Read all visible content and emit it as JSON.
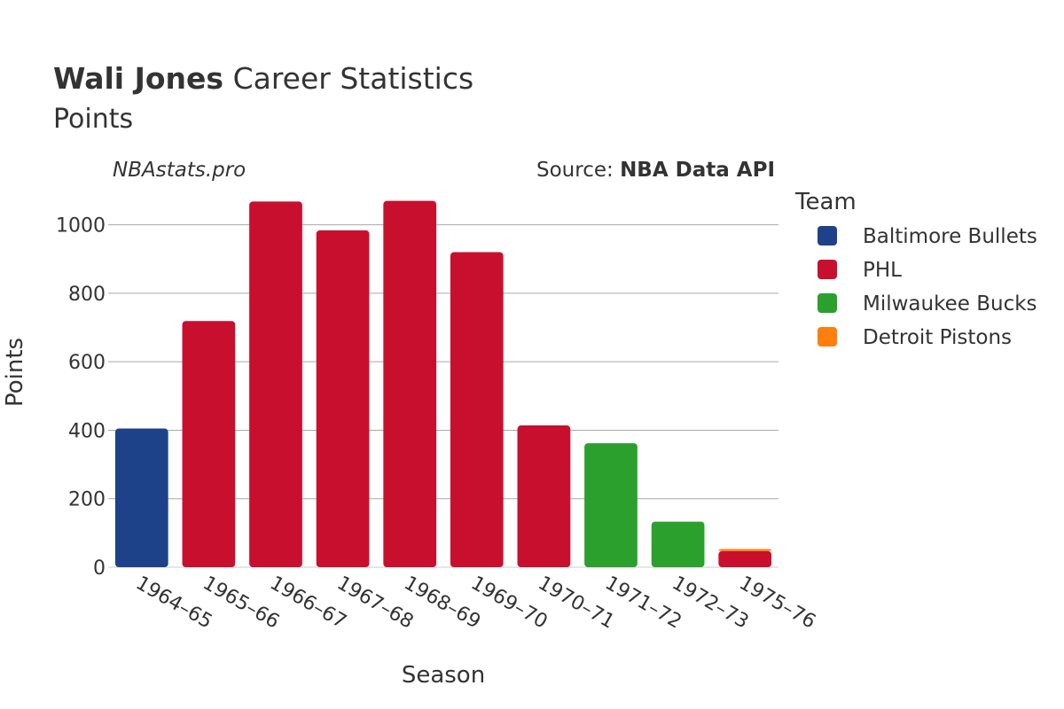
{
  "header": {
    "title_bold": "Wali Jones",
    "title_rest": " Career Statistics",
    "subtitle": "Points",
    "watermark": "NBAstats.pro",
    "source_prefix": "Source: ",
    "source_name": "NBA Data API"
  },
  "legend": {
    "title": "Team",
    "items": [
      {
        "label": "Baltimore Bullets",
        "color": "#1d428a"
      },
      {
        "label": "PHL",
        "color": "#c8102e"
      },
      {
        "label": "Milwaukee Bucks",
        "color": "#2ca02c"
      },
      {
        "label": "Detroit Pistons",
        "color": "#ff7f0e"
      }
    ]
  },
  "chart_data": {
    "type": "bar",
    "stacked": true,
    "title": "Wali Jones Career Statistics",
    "subtitle": "Points",
    "xlabel": "Season",
    "ylabel": "Points",
    "ylim": [
      0,
      1100
    ],
    "yticks": [
      0,
      200,
      400,
      600,
      800,
      1000
    ],
    "grid": true,
    "legend_position": "right",
    "categories": [
      "1964–65",
      "1965–66",
      "1966–67",
      "1967–68",
      "1968–69",
      "1969–70",
      "1970–71",
      "1971–72",
      "1972–73",
      "1975–76"
    ],
    "series": [
      {
        "name": "Baltimore Bullets",
        "color": "#1d428a",
        "values": [
          405,
          0,
          0,
          0,
          0,
          0,
          0,
          0,
          0,
          0
        ]
      },
      {
        "name": "PHL",
        "color": "#c8102e",
        "values": [
          0,
          719,
          1068,
          984,
          1070,
          920,
          414,
          0,
          0,
          47
        ]
      },
      {
        "name": "Milwaukee Bucks",
        "color": "#2ca02c",
        "values": [
          0,
          0,
          0,
          0,
          0,
          0,
          0,
          362,
          133,
          0
        ]
      },
      {
        "name": "Detroit Pistons",
        "color": "#ff7f0e",
        "values": [
          0,
          0,
          0,
          0,
          0,
          0,
          0,
          0,
          0,
          6
        ]
      }
    ]
  }
}
